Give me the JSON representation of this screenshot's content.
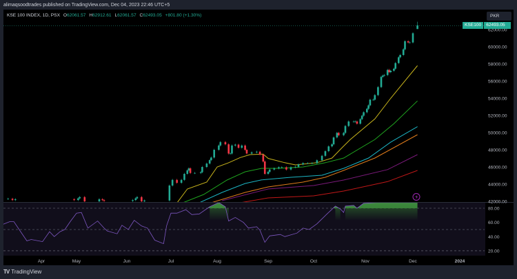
{
  "header": {
    "published_text": "alimaqsoodtrades published on TradingView.com, Dec 04, 2023 22:46 UTC+5"
  },
  "legend": {
    "symbol": "KSE 100 INDEX, 1D, PSX",
    "open_label": "O",
    "open": "62061.57",
    "high_label": "H",
    "high": "62912.61",
    "low_label": "L",
    "low": "62061.57",
    "close_label": "C",
    "close": "62493.05",
    "change": "+801.80 (+1.30%)"
  },
  "currency": "PKR",
  "price_tag": {
    "ticker": "KSE100",
    "value": "62493.05"
  },
  "footer": {
    "brand": "TradingView",
    "logo_icon": "tradingview-logo-icon"
  },
  "alert_icon": "lightning-icon",
  "colors": {
    "up": "#22ab94",
    "down": "#f23645",
    "rsi": "#7e57c2",
    "tag": "#22ab94"
  },
  "chart_data": [
    {
      "type": "candlestick",
      "price_axis_ticks": [
        "62000.00",
        "60000.00",
        "58000.00",
        "56000.00",
        "54000.00",
        "52000.00",
        "50000.00",
        "48000.00",
        "46000.00",
        "44000.00",
        "42000.00"
      ],
      "ylim": [
        42000,
        63000
      ],
      "time_axis_ticks": [
        "Apr",
        "May",
        "Jun",
        "Jul",
        "Aug",
        "Sep",
        "Oct",
        "Nov",
        "Dec",
        "2024"
      ],
      "last": {
        "date": "2023-12-04",
        "open": 62061.57,
        "high": 62912.61,
        "low": 62061.57,
        "close": 62493.05
      },
      "candles": [
        [
          "2023-03-09",
          42300
        ],
        [
          "2023-03-12",
          42150
        ],
        [
          "2023-03-14",
          42250
        ],
        [
          "2023-04-29",
          42150
        ],
        [
          "2023-05-02",
          42350
        ],
        [
          "2023-05-03",
          42500
        ],
        [
          "2023-05-06",
          42000
        ],
        [
          "2023-05-15",
          42250
        ],
        [
          "2023-05-17",
          42150
        ],
        [
          "2023-05-18",
          42050
        ],
        [
          "2023-06-05",
          42150
        ],
        [
          "2023-06-07",
          42350
        ],
        [
          "2023-06-08",
          42500
        ],
        [
          "2023-06-11",
          42000
        ],
        [
          "2023-06-13",
          42100
        ],
        [
          "2023-06-30",
          43840
        ],
        [
          "2023-07-02",
          44500
        ],
        [
          "2023-07-05",
          44160
        ],
        [
          "2023-07-08",
          44500
        ],
        [
          "2023-07-10",
          45200
        ],
        [
          "2023-07-12",
          45600
        ],
        [
          "2023-07-13",
          45840
        ],
        [
          "2023-07-14",
          45300
        ],
        [
          "2023-07-17",
          45300
        ],
        [
          "2023-07-21",
          45400
        ],
        [
          "2023-07-22",
          46000
        ],
        [
          "2023-07-25",
          46400
        ],
        [
          "2023-07-27",
          46800
        ],
        [
          "2023-07-28",
          47100
        ],
        [
          "2023-07-30",
          48000
        ],
        [
          "2023-08-02",
          48500
        ],
        [
          "2023-08-03",
          48900
        ],
        [
          "2023-08-06",
          48640
        ],
        [
          "2023-08-08",
          47570
        ],
        [
          "2023-08-09",
          47570
        ],
        [
          "2023-08-10",
          48500
        ],
        [
          "2023-08-12",
          48600
        ],
        [
          "2023-08-14",
          48240
        ],
        [
          "2023-08-16",
          48500
        ],
        [
          "2023-08-18",
          48000
        ],
        [
          "2023-08-19",
          47570
        ],
        [
          "2023-08-22",
          47700
        ],
        [
          "2023-08-25",
          47780
        ],
        [
          "2023-08-27",
          47440
        ],
        [
          "2023-08-29",
          46640
        ],
        [
          "2023-08-30",
          45200
        ],
        [
          "2023-09-01",
          45440
        ],
        [
          "2023-09-02",
          45700
        ],
        [
          "2023-09-05",
          45840
        ],
        [
          "2023-09-08",
          45970
        ],
        [
          "2023-09-10",
          45970
        ],
        [
          "2023-09-13",
          45700
        ],
        [
          "2023-09-16",
          45970
        ],
        [
          "2023-09-19",
          46020
        ],
        [
          "2023-09-21",
          46300
        ],
        [
          "2023-09-24",
          46450
        ],
        [
          "2023-09-27",
          46450
        ],
        [
          "2023-09-30",
          46450
        ],
        [
          "2023-10-03",
          46780
        ],
        [
          "2023-10-06",
          47300
        ],
        [
          "2023-10-08",
          47840
        ],
        [
          "2023-10-10",
          48400
        ],
        [
          "2023-10-12",
          48640
        ],
        [
          "2023-10-13",
          49440
        ],
        [
          "2023-10-15",
          49970
        ],
        [
          "2023-10-16",
          49700
        ],
        [
          "2023-10-19",
          49970
        ],
        [
          "2023-10-20",
          50770
        ],
        [
          "2023-10-22",
          51300
        ],
        [
          "2023-10-25",
          51300
        ],
        [
          "2023-10-26",
          51300
        ],
        [
          "2023-10-27",
          51040
        ],
        [
          "2023-10-29",
          51570
        ],
        [
          "2023-10-30",
          51970
        ],
        [
          "2023-10-31",
          52370
        ],
        [
          "2023-11-02",
          52770
        ],
        [
          "2023-11-03",
          53170
        ],
        [
          "2023-11-04",
          53840
        ],
        [
          "2023-11-06",
          53840
        ],
        [
          "2023-11-07",
          54370
        ],
        [
          "2023-11-09",
          55300
        ],
        [
          "2023-11-11",
          56500
        ],
        [
          "2023-11-12",
          56640
        ],
        [
          "2023-11-13",
          56700
        ],
        [
          "2023-11-15",
          57300
        ],
        [
          "2023-11-16",
          57040
        ],
        [
          "2023-11-17",
          57200
        ],
        [
          "2023-11-19",
          57440
        ],
        [
          "2023-11-20",
          58100
        ],
        [
          "2023-11-22",
          58770
        ],
        [
          "2023-11-23",
          59040
        ],
        [
          "2023-11-25",
          59700
        ],
        [
          "2023-11-26",
          60640
        ],
        [
          "2023-11-28",
          60500
        ],
        [
          "2023-11-29",
          60500
        ],
        [
          "2023-12-01",
          61570
        ],
        [
          "2023-12-04",
          62493.05
        ]
      ],
      "moving_averages": [
        {
          "color": "#c9b51c",
          "points": [
            [
              "2023-07-05",
              41800
            ],
            [
              "2023-07-12",
              43440
            ],
            [
              "2023-07-25",
              44240
            ],
            [
              "2023-08-01",
              46000
            ],
            [
              "2023-08-08",
              46500
            ],
            [
              "2023-08-15",
              47100
            ],
            [
              "2023-08-21",
              47440
            ],
            [
              "2023-08-29",
              47500
            ],
            [
              "2023-09-01",
              47000
            ],
            [
              "2023-09-12",
              46500
            ],
            [
              "2023-09-19",
              46240
            ],
            [
              "2023-10-03",
              46500
            ],
            [
              "2023-10-12",
              47040
            ],
            [
              "2023-10-18",
              48240
            ],
            [
              "2023-10-23",
              49200
            ],
            [
              "2023-11-07",
              51600
            ],
            [
              "2023-11-17",
              54000
            ],
            [
              "2023-12-04",
              57800
            ]
          ]
        },
        {
          "color": "#1fa51f",
          "points": [
            [
              "2023-07-09",
              41840
            ],
            [
              "2023-07-23",
              42800
            ],
            [
              "2023-08-07",
              44480
            ],
            [
              "2023-08-18",
              45440
            ],
            [
              "2023-08-28",
              45840
            ],
            [
              "2023-09-08",
              45840
            ],
            [
              "2023-09-24",
              46000
            ],
            [
              "2023-10-08",
              46500
            ],
            [
              "2023-10-19",
              47040
            ],
            [
              "2023-11-07",
              49200
            ],
            [
              "2023-11-19",
              51040
            ],
            [
              "2023-12-04",
              53700
            ]
          ]
        },
        {
          "color": "#1cb5c4",
          "points": [
            [
              "2023-07-20",
              41840
            ],
            [
              "2023-08-04",
              43040
            ],
            [
              "2023-08-18",
              44080
            ],
            [
              "2023-08-28",
              44500
            ],
            [
              "2023-09-16",
              44800
            ],
            [
              "2023-10-06",
              45040
            ],
            [
              "2023-10-19",
              45840
            ],
            [
              "2023-11-03",
              47040
            ],
            [
              "2023-11-17",
              48900
            ],
            [
              "2023-12-04",
              50700
            ]
          ]
        },
        {
          "color": "#e07c1b",
          "points": [
            [
              "2023-07-28",
              41840
            ],
            [
              "2023-08-18",
              43040
            ],
            [
              "2023-09-01",
              43680
            ],
            [
              "2023-09-24",
              44240
            ],
            [
              "2023-10-08",
              44800
            ],
            [
              "2023-10-19",
              45600
            ],
            [
              "2023-11-07",
              47040
            ],
            [
              "2023-12-04",
              49760
            ]
          ]
        },
        {
          "color": "#7b1a7b",
          "points": [
            [
              "2023-08-04",
              42080
            ],
            [
              "2023-09-01",
              43440
            ],
            [
              "2023-10-01",
              43840
            ],
            [
              "2023-10-19",
              44480
            ],
            [
              "2023-11-15",
              45700
            ],
            [
              "2023-12-04",
              47440
            ]
          ]
        },
        {
          "color": "#c21818",
          "points": [
            [
              "2023-08-15",
              41840
            ],
            [
              "2023-09-01",
              42400
            ],
            [
              "2023-10-01",
              42640
            ],
            [
              "2023-10-19",
              43200
            ],
            [
              "2023-11-15",
              44300
            ],
            [
              "2023-12-04",
              45600
            ]
          ]
        }
      ]
    },
    {
      "type": "line",
      "ylabel_ticks": [
        "80.00",
        "60.00",
        "40.00",
        "20.00"
      ],
      "ylim": [
        10,
        88
      ],
      "levels": [
        80,
        50,
        20
      ],
      "series": [
        {
          "values": [
            [
              "2023-03-05",
              57
            ],
            [
              "2023-03-10",
              61
            ],
            [
              "2023-03-13",
              61
            ],
            [
              "2023-03-18",
              46
            ],
            [
              "2023-03-22",
              34
            ],
            [
              "2023-03-25",
              36
            ],
            [
              "2023-04-02",
              33
            ],
            [
              "2023-04-08",
              47
            ],
            [
              "2023-04-12",
              40
            ],
            [
              "2023-04-17",
              47
            ],
            [
              "2023-04-21",
              50
            ],
            [
              "2023-04-26",
              62
            ],
            [
              "2023-05-01",
              73
            ],
            [
              "2023-05-04",
              74
            ],
            [
              "2023-05-08",
              52
            ],
            [
              "2023-05-14",
              62
            ],
            [
              "2023-05-18",
              52
            ],
            [
              "2023-05-20",
              48
            ],
            [
              "2023-05-26",
              44
            ],
            [
              "2023-05-29",
              56
            ],
            [
              "2023-06-02",
              50
            ],
            [
              "2023-06-06",
              63
            ],
            [
              "2023-06-11",
              55
            ],
            [
              "2023-06-15",
              52
            ],
            [
              "2023-06-20",
              35
            ],
            [
              "2023-06-26",
              30
            ],
            [
              "2023-06-28",
              55
            ],
            [
              "2023-07-01",
              73
            ],
            [
              "2023-07-05",
              73
            ],
            [
              "2023-07-11",
              78
            ],
            [
              "2023-07-15",
              71
            ],
            [
              "2023-07-20",
              72
            ],
            [
              "2023-07-27",
              82
            ],
            [
              "2023-08-02",
              88
            ],
            [
              "2023-08-06",
              82
            ],
            [
              "2023-08-08",
              62
            ],
            [
              "2023-08-12",
              67
            ],
            [
              "2023-08-17",
              60
            ],
            [
              "2023-08-20",
              52
            ],
            [
              "2023-08-25",
              54
            ],
            [
              "2023-08-27",
              49
            ],
            [
              "2023-08-30",
              32
            ],
            [
              "2023-09-02",
              41
            ],
            [
              "2023-09-09",
              43
            ],
            [
              "2023-09-12",
              40
            ],
            [
              "2023-09-20",
              45
            ],
            [
              "2023-09-24",
              52
            ],
            [
              "2023-09-28",
              50
            ],
            [
              "2023-10-03",
              58
            ],
            [
              "2023-10-09",
              72
            ],
            [
              "2023-10-14",
              83
            ],
            [
              "2023-10-17",
              79
            ],
            [
              "2023-10-19",
              74
            ],
            [
              "2023-10-20",
              83
            ],
            [
              "2023-10-25",
              84
            ],
            [
              "2023-10-27",
              80
            ],
            [
              "2023-10-31",
              87
            ],
            [
              "2023-11-08",
              88
            ],
            [
              "2023-11-18",
              88
            ],
            [
              "2023-12-04",
              88
            ]
          ]
        }
      ]
    }
  ]
}
